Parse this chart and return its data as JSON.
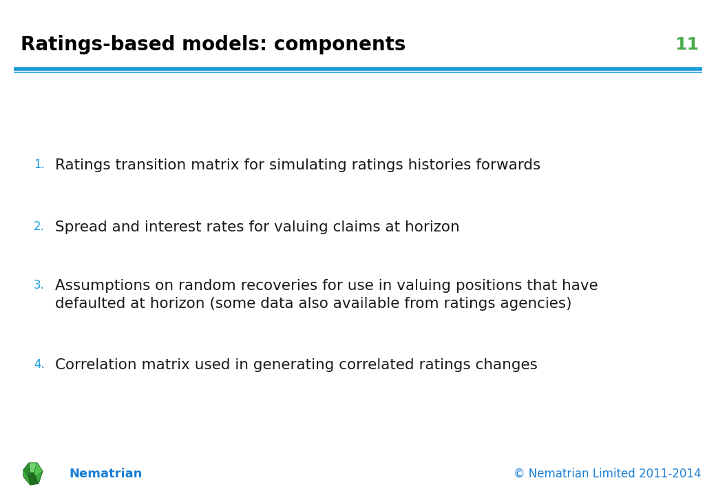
{
  "title": "Ratings-based models: components",
  "slide_number": "11",
  "title_color": "#000000",
  "title_fontsize": 20,
  "slide_number_color": "#4aaa4a",
  "slide_number_fontsize": 18,
  "header_line_color": "#1a9cd8",
  "background_color": "#ffffff",
  "bullet_number_color": "#1a9cd8",
  "bullet_text_color": "#1a1a1a",
  "bullet_fontsize": 15.5,
  "bullet_number_fontsize": 12,
  "footer_text": "© Nematrian Limited 2011-2014",
  "footer_color": "#1a7fd4",
  "footer_fontsize": 12,
  "brand_name": "Nematrian",
  "brand_color": "#1a7fd4",
  "brand_fontsize": 13,
  "bullets": [
    {
      "number": "1.",
      "text": "Ratings transition matrix for simulating ratings histories forwards"
    },
    {
      "number": "2.",
      "text": "Spread and interest rates for valuing claims at horizon"
    },
    {
      "number": "3.",
      "text": "Assumptions on random recoveries for use in valuing positions that have\ndefaulted at horizon (some data also available from ratings agencies)"
    },
    {
      "number": "4.",
      "text": "Correlation matrix used in generating correlated ratings changes"
    }
  ]
}
